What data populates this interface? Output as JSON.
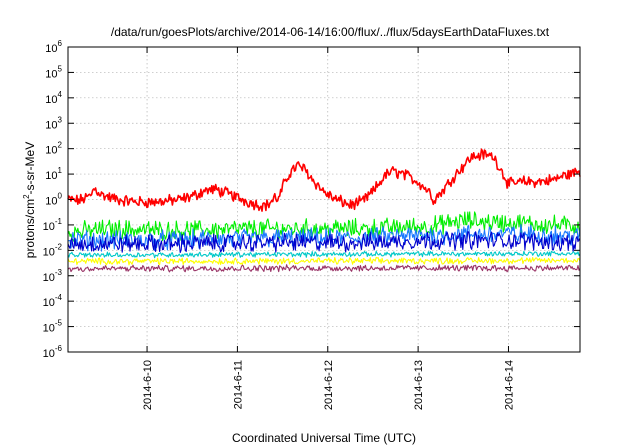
{
  "chart_data": {
    "type": "line",
    "title": "/data/run/goesPlots/archive/2014-06-14/16:00/flux/../flux/5daysEarthDataFluxes.txt",
    "xlabel": "Coordinated Universal Time (UTC)",
    "ylabel": {
      "base": "protons/cm",
      "sup": "2",
      "rest": "-s-sr-MeV"
    },
    "y_scale": "log",
    "ylim": [
      1e-06,
      1000000.0
    ],
    "xlim": [
      "2014-06-09 03:00",
      "2014-06-14 19:00"
    ],
    "grid": true,
    "legend": "none",
    "x_ticks": [
      {
        "date": "2014-06-10",
        "label": "2014-6-10"
      },
      {
        "date": "2014-06-11",
        "label": "2014-6-11"
      },
      {
        "date": "2014-06-12",
        "label": "2014-6-12"
      },
      {
        "date": "2014-06-13",
        "label": "2014-6-13"
      },
      {
        "date": "2014-06-14",
        "label": "2014-6-14"
      }
    ],
    "y_ticks": [
      {
        "exp": -6,
        "label": "10",
        "sup": "-6"
      },
      {
        "exp": -5,
        "label": "10",
        "sup": "-5"
      },
      {
        "exp": -4,
        "label": "10",
        "sup": "-4"
      },
      {
        "exp": -3,
        "label": "10",
        "sup": "-3"
      },
      {
        "exp": -2,
        "label": "10",
        "sup": "-2"
      },
      {
        "exp": -1,
        "label": "10",
        "sup": "-1"
      },
      {
        "exp": 0,
        "label": "10",
        "sup": "0"
      },
      {
        "exp": 1,
        "label": "10",
        "sup": "1"
      },
      {
        "exp": 2,
        "label": "10",
        "sup": "2"
      },
      {
        "exp": 3,
        "label": "10",
        "sup": "3"
      },
      {
        "exp": 4,
        "label": "10",
        "sup": "4"
      },
      {
        "exp": 5,
        "label": "10",
        "sup": "5"
      },
      {
        "exp": 6,
        "label": "10",
        "sup": "6"
      }
    ],
    "series": [
      {
        "color": "#ff0000",
        "noise": 0.18,
        "points": [
          [
            "2014-06-09 03:00",
            1.0
          ],
          [
            "2014-06-09 06:00",
            0.9
          ],
          [
            "2014-06-09 09:00",
            1.4
          ],
          [
            "2014-06-09 10:00",
            2.8
          ],
          [
            "2014-06-09 12:00",
            1.5
          ],
          [
            "2014-06-09 15:00",
            1.1
          ],
          [
            "2014-06-09 18:00",
            0.9
          ],
          [
            "2014-06-09 22:00",
            0.8
          ],
          [
            "2014-06-10 02:00",
            0.8
          ],
          [
            "2014-06-10 06:00",
            0.9
          ],
          [
            "2014-06-10 09:00",
            1.0
          ],
          [
            "2014-06-10 13:00",
            1.5
          ],
          [
            "2014-06-10 15:00",
            2.2
          ],
          [
            "2014-06-10 18:00",
            2.5
          ],
          [
            "2014-06-10 21:00",
            1.8
          ],
          [
            "2014-06-11 00:00",
            1.2
          ],
          [
            "2014-06-11 03:00",
            0.8
          ],
          [
            "2014-06-11 06:00",
            0.6
          ],
          [
            "2014-06-11 08:00",
            0.6
          ],
          [
            "2014-06-11 10:00",
            1.2
          ],
          [
            "2014-06-11 11:00",
            1.0
          ],
          [
            "2014-06-11 12:00",
            3.0
          ],
          [
            "2014-06-11 14:00",
            12.0
          ],
          [
            "2014-06-11 16:00",
            22.0
          ],
          [
            "2014-06-11 18:00",
            15.0
          ],
          [
            "2014-06-11 20:00",
            6.0
          ],
          [
            "2014-06-11 23:00",
            2.0
          ],
          [
            "2014-06-12 02:00",
            1.0
          ],
          [
            "2014-06-12 04:00",
            0.8
          ],
          [
            "2014-06-12 06:00",
            0.6
          ],
          [
            "2014-06-12 09:00",
            0.8
          ],
          [
            "2014-06-12 12:00",
            2.0
          ],
          [
            "2014-06-12 15:00",
            8.0
          ],
          [
            "2014-06-12 17:00",
            13.0
          ],
          [
            "2014-06-12 20:00",
            10.0
          ],
          [
            "2014-06-13 00:00",
            5.0
          ],
          [
            "2014-06-13 03:00",
            2.0
          ],
          [
            "2014-06-13 04:00",
            1.0
          ],
          [
            "2014-06-13 06:00",
            1.8
          ],
          [
            "2014-06-13 10:00",
            10.0
          ],
          [
            "2014-06-13 14:00",
            45.0
          ],
          [
            "2014-06-13 17:00",
            60.0
          ],
          [
            "2014-06-13 20:00",
            50.0
          ],
          [
            "2014-06-13 22:00",
            15.0
          ],
          [
            "2014-06-14 00:00",
            4.0
          ],
          [
            "2014-06-14 04:00",
            5.0
          ],
          [
            "2014-06-14 08:00",
            5.0
          ],
          [
            "2014-06-14 12:00",
            6.0
          ],
          [
            "2014-06-14 15:00",
            9.0
          ],
          [
            "2014-06-14 19:00",
            13.0
          ]
        ]
      },
      {
        "color": "#00ee00",
        "noise": 0.3,
        "points": [
          [
            "2014-06-09 03:00",
            0.05
          ],
          [
            "2014-06-09 14:00",
            0.07
          ],
          [
            "2014-06-10 06:00",
            0.06
          ],
          [
            "2014-06-11 06:00",
            0.07
          ],
          [
            "2014-06-12 06:00",
            0.07
          ],
          [
            "2014-06-12 20:00",
            0.08
          ],
          [
            "2014-06-13 04:00",
            0.09
          ],
          [
            "2014-06-13 12:00",
            0.15
          ],
          [
            "2014-06-14 00:00",
            0.12
          ],
          [
            "2014-06-14 19:00",
            0.09
          ]
        ]
      },
      {
        "color": "#1a78ff",
        "noise": 0.3,
        "points": [
          [
            "2014-06-09 03:00",
            0.025
          ],
          [
            "2014-06-10 06:00",
            0.025
          ],
          [
            "2014-06-11 06:00",
            0.03
          ],
          [
            "2014-06-12 06:00",
            0.03
          ],
          [
            "2014-06-13 06:00",
            0.04
          ],
          [
            "2014-06-14 00:00",
            0.045
          ],
          [
            "2014-06-14 19:00",
            0.035
          ]
        ]
      },
      {
        "color": "#0000cc",
        "noise": 0.28,
        "points": [
          [
            "2014-06-09 03:00",
            0.018
          ],
          [
            "2014-06-10 06:00",
            0.018
          ],
          [
            "2014-06-11 06:00",
            0.02
          ],
          [
            "2014-06-12 06:00",
            0.02
          ],
          [
            "2014-06-13 06:00",
            0.025
          ],
          [
            "2014-06-14 00:00",
            0.025
          ],
          [
            "2014-06-14 19:00",
            0.02
          ]
        ]
      },
      {
        "color": "#00c8c8",
        "noise": 0.08,
        "points": [
          [
            "2014-06-09 03:00",
            0.0065
          ],
          [
            "2014-06-12 00:00",
            0.007
          ],
          [
            "2014-06-14 19:00",
            0.0075
          ]
        ]
      },
      {
        "color": "#ffff00",
        "noise": 0.1,
        "points": [
          [
            "2014-06-09 03:00",
            0.0037
          ],
          [
            "2014-06-12 00:00",
            0.0038
          ],
          [
            "2014-06-14 19:00",
            0.004
          ]
        ]
      },
      {
        "color": "#993366",
        "noise": 0.1,
        "points": [
          [
            "2014-06-09 03:00",
            0.0019
          ],
          [
            "2014-06-12 00:00",
            0.002
          ],
          [
            "2014-06-14 19:00",
            0.002
          ]
        ]
      }
    ]
  }
}
